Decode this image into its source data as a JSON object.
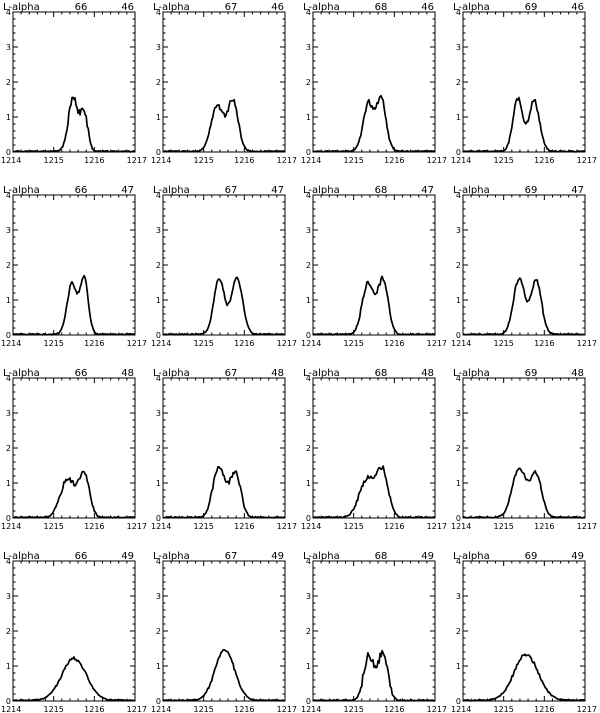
{
  "chart_data": {
    "type": "line",
    "xlim": [
      1214,
      1217
    ],
    "ylim": [
      0,
      4
    ],
    "x_ticks": [
      1214,
      1215,
      1216,
      1217
    ],
    "y_ticks": [
      0,
      1,
      2,
      3,
      4
    ],
    "grid": false,
    "panels": [
      {
        "label": "L-alpha",
        "col_num": "66",
        "row_num": "46",
        "line": {
          "base": 0.02,
          "components": [
            [
              1215.48,
              1.5,
              0.12
            ],
            [
              1215.75,
              1.05,
              0.09
            ]
          ],
          "noise": 0.18,
          "seed": 11
        }
      },
      {
        "label": "L-alpha",
        "col_num": "67",
        "row_num": "46",
        "line": {
          "base": 0.02,
          "components": [
            [
              1215.33,
              1.3,
              0.15
            ],
            [
              1215.72,
              1.45,
              0.13
            ]
          ],
          "noise": 0.12,
          "seed": 12
        }
      },
      {
        "label": "L-alpha",
        "col_num": "68",
        "row_num": "46",
        "line": {
          "base": 0.02,
          "components": [
            [
              1215.36,
              1.35,
              0.13
            ],
            [
              1215.68,
              1.5,
              0.12
            ]
          ],
          "noise": 0.15,
          "seed": 13
        }
      },
      {
        "label": "L-alpha",
        "col_num": "69",
        "row_num": "46",
        "line": {
          "base": 0.02,
          "components": [
            [
              1215.35,
              1.5,
              0.12
            ],
            [
              1215.75,
              1.45,
              0.13
            ]
          ],
          "noise": 0.12,
          "seed": 14
        }
      },
      {
        "label": "L-alpha",
        "col_num": "66",
        "row_num": "47",
        "line": {
          "base": 0.02,
          "components": [
            [
              1215.45,
              1.45,
              0.12
            ],
            [
              1215.75,
              1.6,
              0.1
            ]
          ],
          "noise": 0.08,
          "seed": 21
        }
      },
      {
        "label": "L-alpha",
        "col_num": "67",
        "row_num": "47",
        "line": {
          "base": 0.02,
          "components": [
            [
              1215.38,
              1.6,
              0.13
            ],
            [
              1215.82,
              1.6,
              0.14
            ]
          ],
          "noise": 0.08,
          "seed": 22
        }
      },
      {
        "label": "L-alpha",
        "col_num": "68",
        "row_num": "47",
        "line": {
          "base": 0.02,
          "components": [
            [
              1215.35,
              1.45,
              0.14
            ],
            [
              1215.72,
              1.55,
              0.13
            ]
          ],
          "noise": 0.14,
          "seed": 23
        }
      },
      {
        "label": "L-alpha",
        "col_num": "69",
        "row_num": "47",
        "line": {
          "base": 0.02,
          "components": [
            [
              1215.38,
              1.6,
              0.14
            ],
            [
              1215.8,
              1.55,
              0.13
            ]
          ],
          "noise": 0.08,
          "seed": 24
        }
      },
      {
        "label": "L-alpha",
        "col_num": "66",
        "row_num": "48",
        "line": {
          "base": 0.02,
          "components": [
            [
              1215.35,
              1.1,
              0.18
            ],
            [
              1215.75,
              1.2,
              0.13
            ]
          ],
          "noise": 0.12,
          "seed": 31
        }
      },
      {
        "label": "L-alpha",
        "col_num": "67",
        "row_num": "48",
        "line": {
          "base": 0.02,
          "components": [
            [
              1215.38,
              1.45,
              0.15
            ],
            [
              1215.78,
              1.3,
              0.13
            ]
          ],
          "noise": 0.14,
          "seed": 32
        }
      },
      {
        "label": "L-alpha",
        "col_num": "68",
        "row_num": "48",
        "line": {
          "base": 0.02,
          "components": [
            [
              1215.35,
              1.1,
              0.2
            ],
            [
              1215.72,
              1.2,
              0.14
            ]
          ],
          "noise": 0.14,
          "seed": 33
        }
      },
      {
        "label": "L-alpha",
        "col_num": "69",
        "row_num": "48",
        "line": {
          "base": 0.02,
          "components": [
            [
              1215.38,
              1.4,
              0.17
            ],
            [
              1215.8,
              1.2,
              0.14
            ]
          ],
          "noise": 0.1,
          "seed": 34
        }
      },
      {
        "label": "L-alpha",
        "col_num": "66",
        "row_num": "49",
        "line": {
          "base": 0.02,
          "components": [
            [
              1215.5,
              1.2,
              0.3
            ]
          ],
          "noise": 0.08,
          "seed": 41
        }
      },
      {
        "label": "L-alpha",
        "col_num": "67",
        "row_num": "49",
        "line": {
          "base": 0.02,
          "components": [
            [
              1215.52,
              1.45,
              0.24
            ]
          ],
          "noise": 0.08,
          "seed": 42
        }
      },
      {
        "label": "L-alpha",
        "col_num": "68",
        "row_num": "49",
        "line": {
          "base": 0.02,
          "components": [
            [
              1215.38,
              1.25,
              0.13
            ],
            [
              1215.72,
              1.3,
              0.12
            ]
          ],
          "noise": 0.25,
          "seed": 43
        }
      },
      {
        "label": "L-alpha",
        "col_num": "69",
        "row_num": "49",
        "line": {
          "base": 0.02,
          "components": [
            [
              1215.55,
              1.3,
              0.3
            ]
          ],
          "noise": 0.08,
          "seed": 44
        }
      }
    ]
  }
}
